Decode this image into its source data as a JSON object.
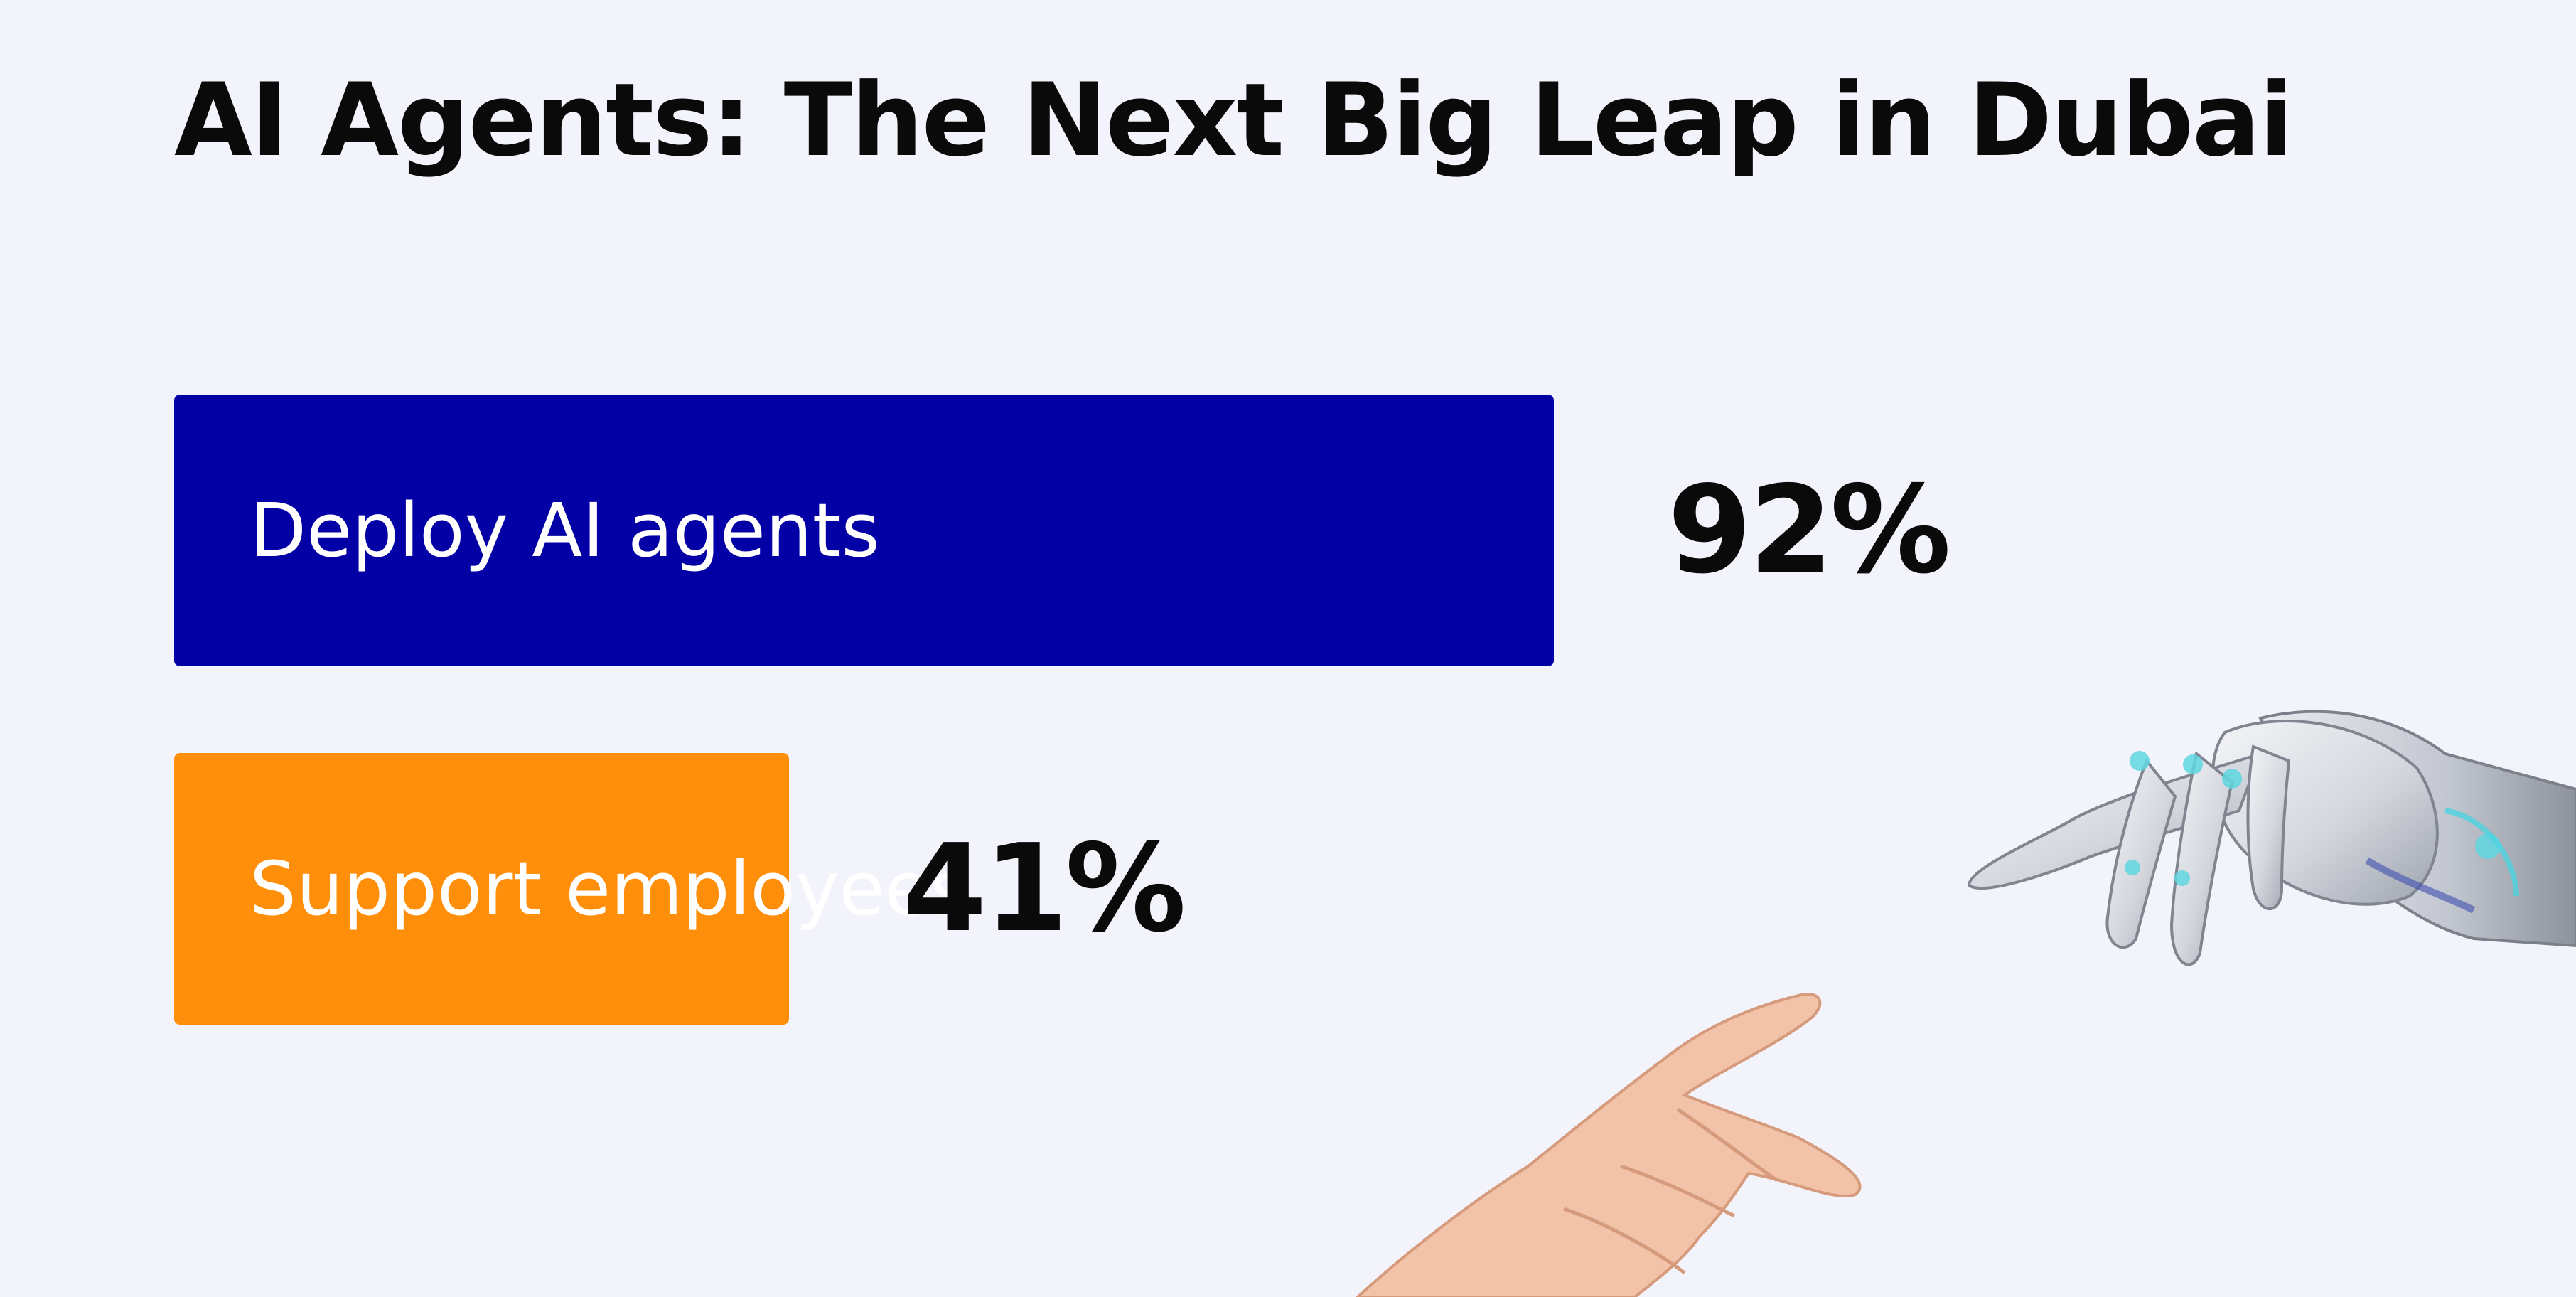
{
  "title": "AI Agents: The Next Big Leap in Dubai",
  "chart_data": {
    "type": "bar",
    "orientation": "horizontal",
    "title": "AI Agents: The Next Big Leap in Dubai",
    "categories": [
      "Deploy AI agents",
      "Support employees"
    ],
    "values": [
      92,
      41
    ],
    "value_labels": [
      "92%",
      "41%"
    ],
    "unit": "%",
    "colors": [
      "#0300a6",
      "#ff8e0a"
    ],
    "xlim": [
      0,
      100
    ],
    "grid": false,
    "legend": "none"
  },
  "illustration": {
    "robot_hand": "robot-hand-icon",
    "human_hand": "human-hand-icon"
  },
  "colors": {
    "background": "#f3f4fb",
    "text": "#0a0a0a",
    "bar_label": "#ffffff"
  }
}
